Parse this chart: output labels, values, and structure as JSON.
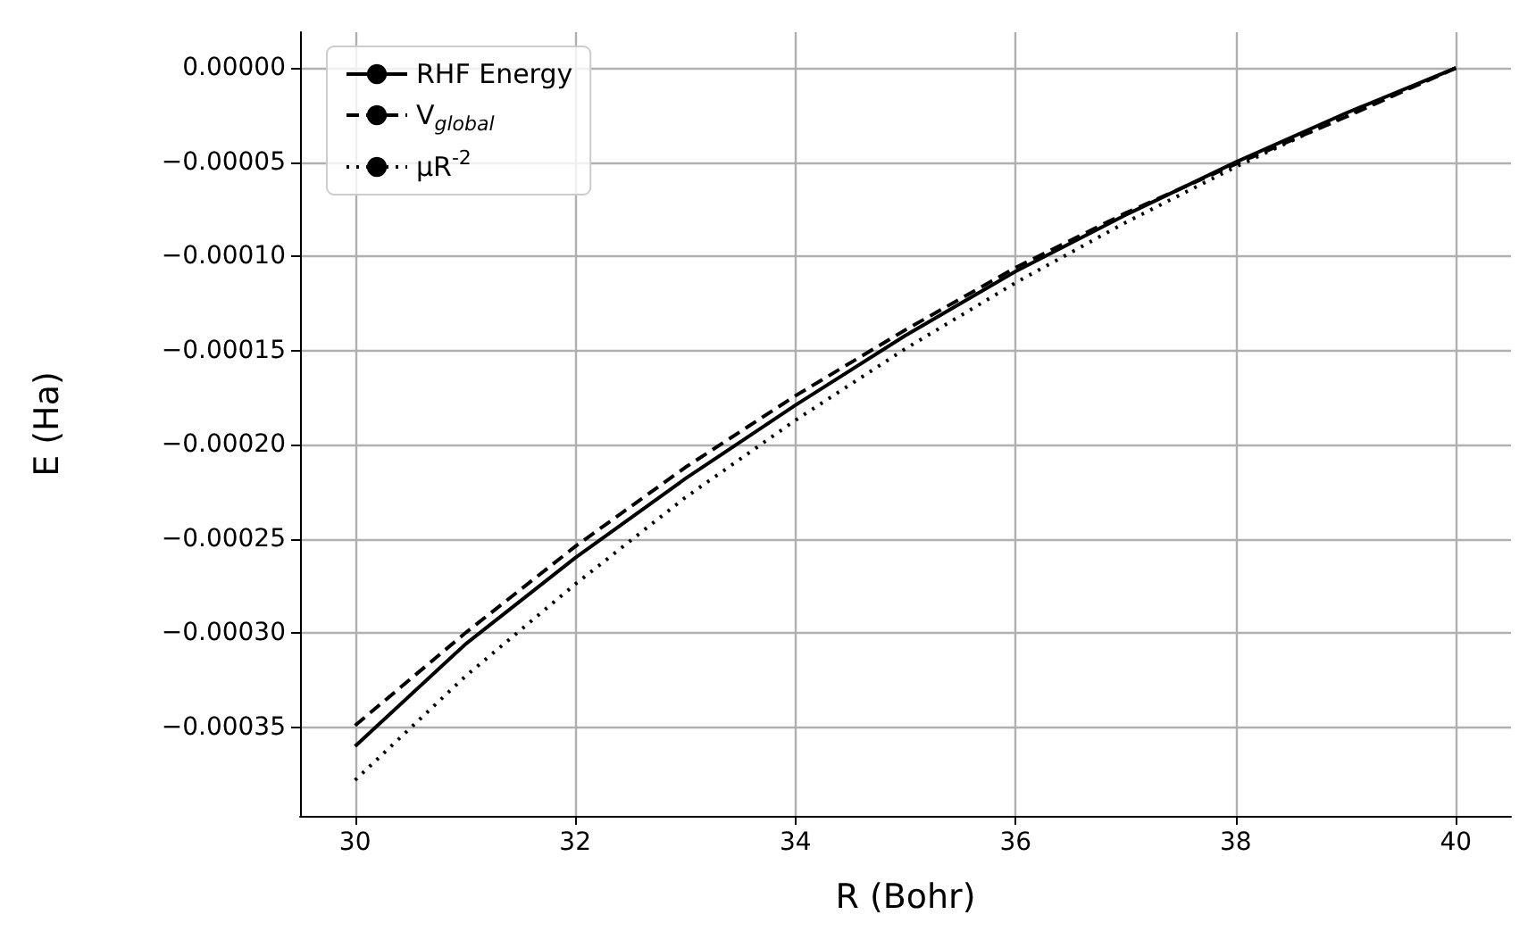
{
  "chart_data": {
    "type": "line",
    "xlabel": "R (Bohr)",
    "ylabel": "E (Ha)",
    "x": [
      30,
      31,
      32,
      33,
      34,
      35,
      36,
      37,
      38,
      39,
      40
    ],
    "series": [
      {
        "name": "RHF Energy",
        "color": "#000000",
        "line_style": "solid",
        "values": [
          -0.00036,
          -0.000306,
          -0.00026,
          -0.000218,
          -0.000179,
          -0.000142,
          -0.000108,
          -7.8e-05,
          -5e-05,
          -2.4e-05,
          0
        ]
      },
      {
        "name": "V$_{global}$",
        "color": "#000000",
        "line_style": "dashed",
        "values": [
          -0.000349,
          -0.0003,
          -0.000254,
          -0.000212,
          -0.000174,
          -0.000139,
          -0.000106,
          -7.7e-05,
          -5.1e-05,
          -2.6e-05,
          0
        ]
      },
      {
        "name": "μR$^{-2}$",
        "color": "#000000",
        "line_style": "dotted",
        "values": [
          -0.000378,
          -0.000323,
          -0.000274,
          -0.000228,
          -0.000187,
          -0.000149,
          -0.000114,
          -8.2e-05,
          -5.25e-05,
          -2.53e-05,
          0
        ]
      }
    ],
    "xlim": [
      29.5,
      40.5
    ],
    "xticks": [
      30,
      32,
      34,
      36,
      38,
      40
    ],
    "ylim": [
      -0.000397,
      1.9e-05
    ],
    "yticks": [
      {
        "value": 0,
        "label": "0.00000"
      },
      {
        "value": -5e-05,
        "label": "−0.00005"
      },
      {
        "value": -0.0001,
        "label": "−0.00010"
      },
      {
        "value": -0.00015,
        "label": "−0.00015"
      },
      {
        "value": -0.0002,
        "label": "−0.00020"
      },
      {
        "value": -0.00025,
        "label": "−0.00025"
      },
      {
        "value": -0.0003,
        "label": "−0.00030"
      },
      {
        "value": -0.00035,
        "label": "−0.00035"
      }
    ],
    "grid": true,
    "legend": "top left",
    "marker": "none"
  }
}
